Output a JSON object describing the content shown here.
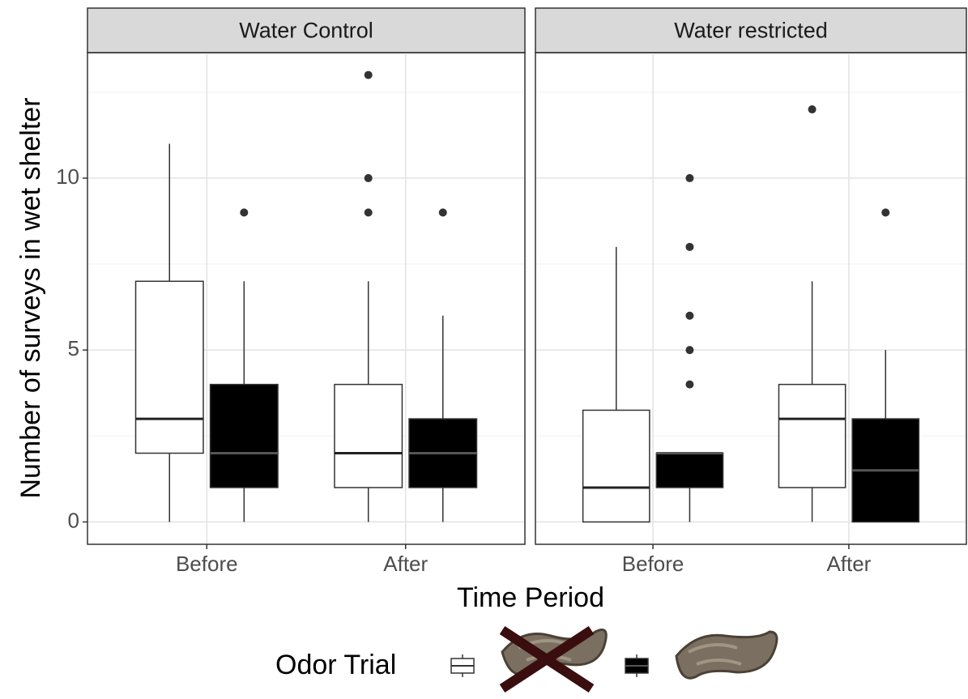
{
  "chart_data": {
    "type": "boxplot",
    "y_label": "Number of surveys in wet shelter",
    "x_label": "Time Period",
    "legend_title": "Odor Trial",
    "categories": [
      "Before",
      "After"
    ],
    "ylim": [
      -0.65,
      13.65
    ],
    "yticks": [
      0,
      5,
      10
    ],
    "minor_yticks": [
      2.5,
      7.5,
      12.5
    ],
    "grid": true,
    "panels": [
      {
        "title": "Water Control",
        "series": [
          {
            "color": "#ffffff",
            "boxes": [
              {
                "min": 0,
                "q1": 2,
                "median": 3,
                "q3": 7,
                "max": 11,
                "outliers": []
              },
              {
                "min": 0,
                "q1": 1,
                "median": 2,
                "q3": 4,
                "max": 7,
                "outliers": [
                  9,
                  10,
                  13
                ]
              }
            ]
          },
          {
            "color": "#000000",
            "boxes": [
              {
                "min": 0,
                "q1": 1,
                "median": 2,
                "q3": 4,
                "max": 7,
                "outliers": [
                  9
                ]
              },
              {
                "min": 0,
                "q1": 1,
                "median": 2,
                "q3": 3,
                "max": 6,
                "outliers": [
                  9
                ]
              }
            ]
          }
        ]
      },
      {
        "title": "Water restricted",
        "series": [
          {
            "color": "#ffffff",
            "boxes": [
              {
                "min": 0,
                "q1": 0,
                "median": 1,
                "q3": 3.25,
                "max": 8,
                "outliers": []
              },
              {
                "min": 0,
                "q1": 1,
                "median": 3,
                "q3": 4,
                "max": 7,
                "outliers": [
                  12
                ]
              }
            ]
          },
          {
            "color": "#000000",
            "boxes": [
              {
                "min": 0,
                "q1": 1,
                "median": 2,
                "q3": 2,
                "max": 2,
                "outliers": [
                  4,
                  5,
                  6,
                  8,
                  10
                ]
              },
              {
                "min": 0,
                "q1": 0,
                "median": 1.5,
                "q3": 3,
                "max": 5,
                "outliers": [
                  9
                ]
              }
            ]
          }
        ]
      }
    ]
  }
}
